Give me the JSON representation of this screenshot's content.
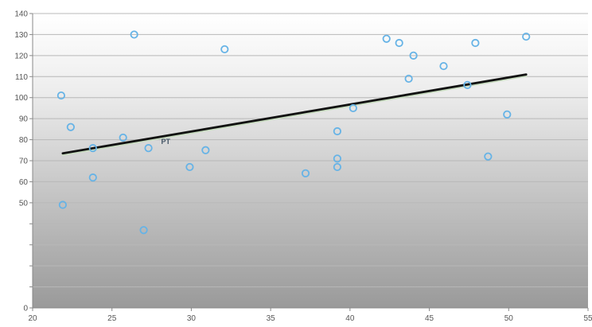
{
  "chart_data": {
    "type": "scatter",
    "title": "",
    "xlabel": "",
    "ylabel": "",
    "xlim": [
      20,
      55
    ],
    "ylim": [
      0,
      140
    ],
    "x_ticks": [
      20,
      25,
      30,
      35,
      40,
      45,
      50,
      55
    ],
    "x_tick_labels": [
      "20",
      "25",
      "30",
      "35",
      "40",
      "45",
      "50",
      "55"
    ],
    "y_ticks": [
      0,
      10,
      20,
      30,
      40,
      50,
      60,
      70,
      80,
      90,
      100,
      110,
      120,
      130,
      140
    ],
    "y_tick_labels": [
      "0",
      "",
      "",
      "",
      "",
      "50",
      "60",
      "70",
      "80",
      "90",
      "100",
      "110",
      "120",
      "130",
      "140"
    ],
    "grid": true,
    "legend": "none",
    "colors": {
      "marker": "#66b3e6",
      "trendline": "#111111",
      "trendline_highlight": "#c8dcc0",
      "gradient_top": "#ffffff",
      "gradient_bottom": "#9a9a9a",
      "gridline": "#b8b8b8"
    },
    "series": [
      {
        "points": [
          {
            "x": 21.8,
            "y": 101
          },
          {
            "x": 21.9,
            "y": 49
          },
          {
            "x": 22.4,
            "y": 86
          },
          {
            "x": 23.8,
            "y": 76
          },
          {
            "x": 23.8,
            "y": 62
          },
          {
            "x": 25.7,
            "y": 81
          },
          {
            "x": 26.4,
            "y": 130
          },
          {
            "x": 27.0,
            "y": 37
          },
          {
            "x": 27.3,
            "y": 76
          },
          {
            "x": 29.9,
            "y": 67
          },
          {
            "x": 30.9,
            "y": 75
          },
          {
            "x": 32.1,
            "y": 123
          },
          {
            "x": 37.2,
            "y": 64
          },
          {
            "x": 39.2,
            "y": 84
          },
          {
            "x": 39.2,
            "y": 71
          },
          {
            "x": 39.2,
            "y": 67
          },
          {
            "x": 40.2,
            "y": 95
          },
          {
            "x": 42.3,
            "y": 128
          },
          {
            "x": 43.1,
            "y": 126
          },
          {
            "x": 43.7,
            "y": 109
          },
          {
            "x": 44.0,
            "y": 120
          },
          {
            "x": 45.9,
            "y": 115
          },
          {
            "x": 47.4,
            "y": 106
          },
          {
            "x": 47.9,
            "y": 126
          },
          {
            "x": 48.7,
            "y": 72
          },
          {
            "x": 49.9,
            "y": 92
          },
          {
            "x": 51.1,
            "y": 129
          }
        ]
      }
    ],
    "trendline": {
      "x": [
        21.9,
        51.1
      ],
      "y": [
        73.5,
        111
      ]
    },
    "annotations": [
      {
        "text": "PT",
        "x": 28.1,
        "y": 78
      }
    ]
  }
}
